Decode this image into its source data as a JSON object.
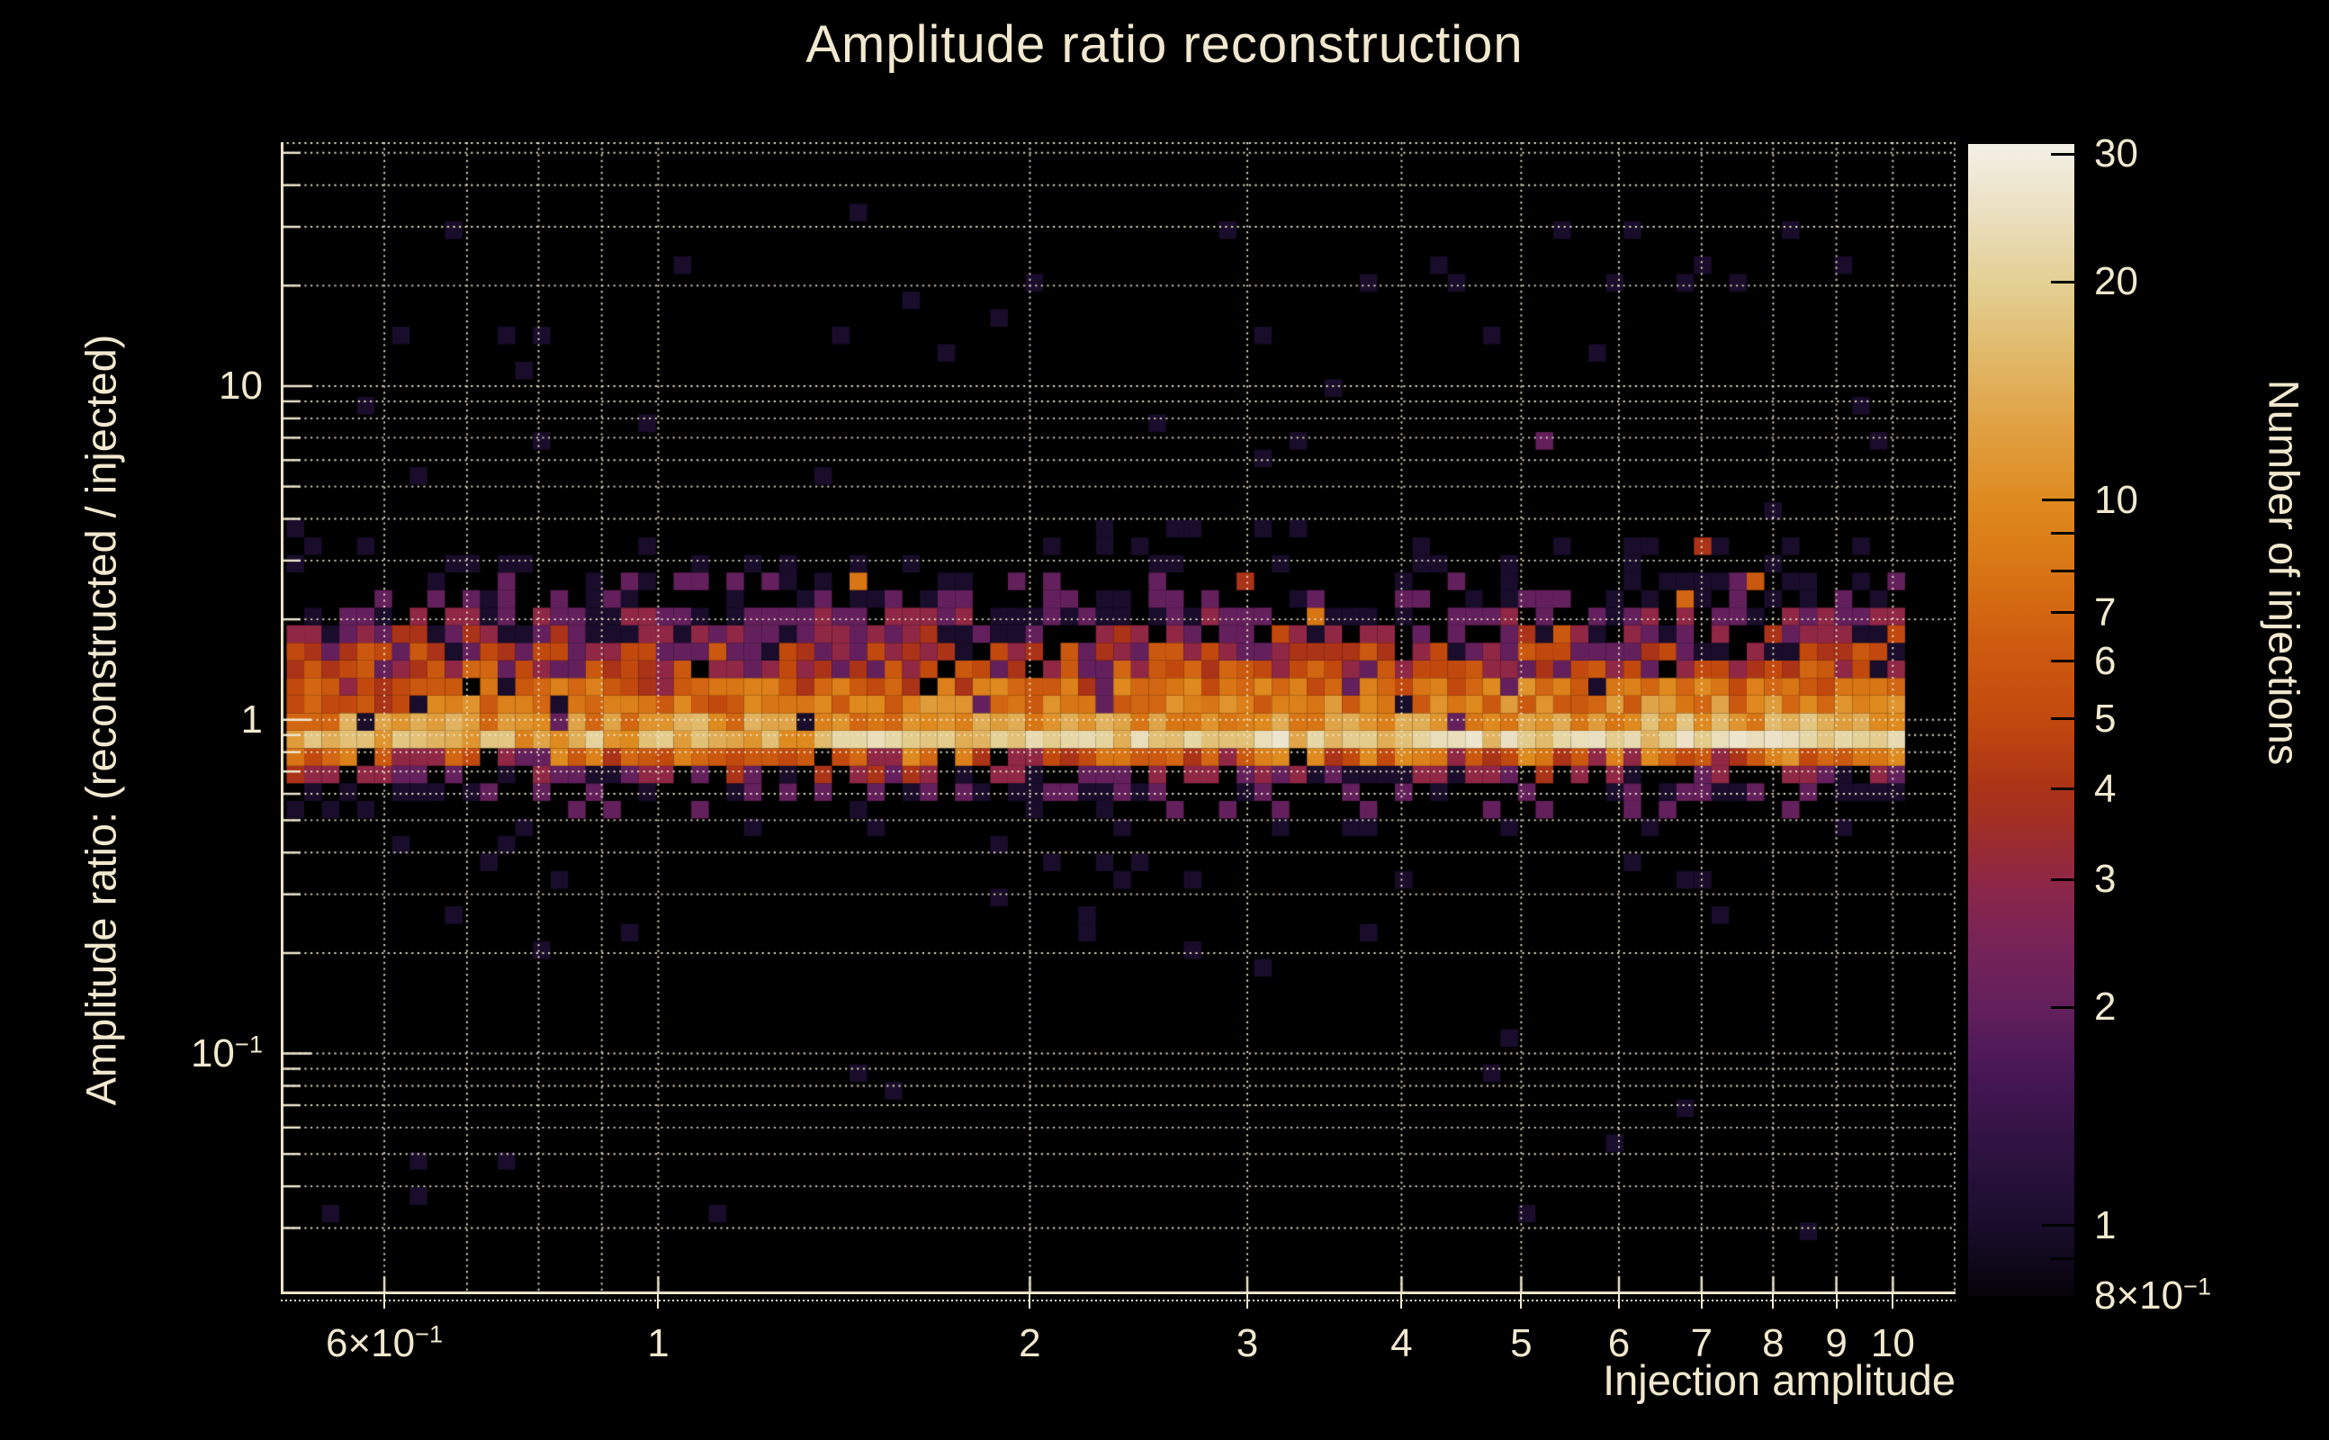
{
  "chart_data": {
    "type": "heatmap",
    "title": "Amplitude ratio reconstruction",
    "xlabel": "Injection amplitude",
    "ylabel": "Amplitude ratio: (reconstructed / injected)",
    "colorbar_label": "Number of injections",
    "x_scale": "log",
    "y_scale": "log",
    "x_range": [
      0.4946,
      11.24
    ],
    "y_range": [
      0.019,
      53.8
    ],
    "grid": {
      "on": true,
      "style": "dotted",
      "color": "#ece3c8"
    },
    "background_color": "#000000",
    "text_color": "#f1e8cf",
    "x_ticks": [
      {
        "v": 0.6,
        "m": "6×10",
        "e": "−1"
      },
      {
        "v": 1,
        "m": "1"
      },
      {
        "v": 2,
        "m": "2"
      },
      {
        "v": 3,
        "m": "3"
      },
      {
        "v": 4,
        "m": "4"
      },
      {
        "v": 5,
        "m": "5"
      },
      {
        "v": 6,
        "m": "6"
      },
      {
        "v": 7,
        "m": "7"
      },
      {
        "v": 8,
        "m": "8"
      },
      {
        "v": 9,
        "m": "9"
      },
      {
        "v": 10,
        "m": "10"
      }
    ],
    "y_ticks": [
      {
        "v": 10,
        "m": "10"
      },
      {
        "v": 1,
        "m": "1"
      },
      {
        "v": 0.1,
        "m": "10",
        "e": "−1"
      }
    ],
    "x_gridlines": [
      0.6,
      0.7,
      0.8,
      0.9,
      1,
      2,
      3,
      4,
      5,
      6,
      7,
      8,
      9,
      10
    ],
    "y_gridlines": [
      50,
      40,
      30,
      20,
      10,
      9,
      8,
      7,
      6,
      5,
      4,
      3,
      2,
      1,
      0.9,
      0.8,
      0.7,
      0.6,
      0.5,
      0.4,
      0.3,
      0.2,
      0.1,
      0.09,
      0.08,
      0.07,
      0.06,
      0.05,
      0.04,
      0.03
    ],
    "y_major_ticks": [
      10,
      1,
      0.1
    ],
    "colorbar": {
      "vmin": 0.8,
      "vmax": 31,
      "scale": "log",
      "tick_labels": [
        {
          "v": 30,
          "m": "30"
        },
        {
          "v": 20,
          "m": "20"
        },
        {
          "v": 10,
          "m": "10"
        },
        {
          "v": 7,
          "m": "7"
        },
        {
          "v": 6,
          "m": "6"
        },
        {
          "v": 5,
          "m": "5"
        },
        {
          "v": 4,
          "m": "4"
        },
        {
          "v": 3,
          "m": "3"
        },
        {
          "v": 2,
          "m": "2"
        },
        {
          "v": 1,
          "m": "1"
        },
        {
          "v": 0.8,
          "m": "8×10",
          "e": "−1"
        }
      ],
      "tick_marks": [
        30,
        20,
        10,
        9,
        8,
        7,
        6,
        5,
        4,
        3,
        2,
        1,
        0.9
      ],
      "major_tick_marks": [
        10,
        1
      ],
      "colormap_stops": [
        [
          0.0,
          "#060309"
        ],
        [
          0.06,
          "#190d2b"
        ],
        [
          0.13,
          "#2f1342"
        ],
        [
          0.2,
          "#4a1757"
        ],
        [
          0.25,
          "#63205c"
        ],
        [
          0.31,
          "#782457"
        ],
        [
          0.36,
          "#8e2746"
        ],
        [
          0.41,
          "#a02f24"
        ],
        [
          0.44,
          "#ab3317"
        ],
        [
          0.5,
          "#c2490e"
        ],
        [
          0.57,
          "#cf5d10"
        ],
        [
          0.63,
          "#d87514"
        ],
        [
          0.69,
          "#de8a1f"
        ],
        [
          0.76,
          "#e0a346"
        ],
        [
          0.82,
          "#e1ba6c"
        ],
        [
          0.88,
          "#e3d094"
        ],
        [
          0.94,
          "#ebdfc0"
        ],
        [
          1.0,
          "#f3f0e7"
        ]
      ]
    },
    "histogram": {
      "description": "2D histogram of reconstructed/injected amplitude ratio vs injection amplitude; dense band near ratio 1 (brightest row spans ratio 0.82-0.93, counts up to ~31 increasing toward high amplitude), sparse low-count scatter above up to ratio ~40 and below down to ~0.03",
      "seed": 20240915,
      "x_bins": {
        "min": 0.5,
        "max": 10.23,
        "n": 92
      },
      "row_grid": {
        "rows_per_decade": 19,
        "anchor_log": -0.0325,
        "k_min": -29,
        "k_max": 31
      },
      "bright_row_ratio_range": [
        0.822,
        0.928
      ],
      "white_chance": 0.07,
      "row_bands": [
        {
          "rel_from": 0,
          "rel_to": 0,
          "fill": 1.0,
          "cmin": 8,
          "cmax": 20,
          "right_boost": 9
        },
        {
          "rel_from": 1,
          "rel_to": 1,
          "fill": 1.0,
          "cmin": 6,
          "cmax": 15,
          "right_boost": 3
        },
        {
          "rel_from": 2,
          "rel_to": 2,
          "fill": 1.0,
          "cmin": 4,
          "cmax": 11,
          "right_boost": 2
        },
        {
          "rel_from": 3,
          "rel_to": 3,
          "fill": 0.97,
          "cmin": 3,
          "cmax": 9,
          "right_boost": 2
        },
        {
          "rel_from": 4,
          "rel_to": 4,
          "fill": 0.95,
          "cmin": 2,
          "cmax": 7,
          "right_boost": 0
        },
        {
          "rel_from": 5,
          "rel_to": 5,
          "fill": 0.9,
          "cmin": 1,
          "cmax": 6,
          "right_boost": 0
        },
        {
          "rel_from": 6,
          "rel_to": 6,
          "fill": 0.78,
          "cmin": 1,
          "cmax": 4,
          "right_boost": 0
        },
        {
          "rel_from": 7,
          "rel_to": 7,
          "fill": 0.6,
          "cmin": 1,
          "cmax": 3,
          "right_boost": 0
        },
        {
          "rel_from": 8,
          "rel_to": 8,
          "fill": 0.42,
          "cmin": 1,
          "cmax": 2,
          "right_boost": 0
        },
        {
          "rel_from": 9,
          "rel_to": 9,
          "fill": 0.3,
          "cmin": 1,
          "cmax": 2,
          "right_boost": 0
        },
        {
          "rel_from": 10,
          "rel_to": 10,
          "fill": 0.2,
          "cmin": 1,
          "cmax": 1,
          "right_boost": 0
        },
        {
          "rel_from": 11,
          "rel_to": 11,
          "fill": 0.11,
          "cmin": 1,
          "cmax": 1,
          "right_boost": 0
        },
        {
          "rel_from": 12,
          "rel_to": 13,
          "fill": 0.05,
          "cmin": 1,
          "cmax": 1,
          "right_boost": 0
        },
        {
          "rel_from": 14,
          "rel_to": 31,
          "fill": 0.012,
          "cmin": 1,
          "cmax": 1,
          "right_boost": 0
        },
        {
          "rel_from": -1,
          "rel_to": -1,
          "fill": 0.96,
          "cmin": 2,
          "cmax": 10,
          "right_boost": 1
        },
        {
          "rel_from": -2,
          "rel_to": -2,
          "fill": 0.7,
          "cmin": 1,
          "cmax": 4,
          "right_boost": 0
        },
        {
          "rel_from": -3,
          "rel_to": -3,
          "fill": 0.45,
          "cmin": 1,
          "cmax": 2,
          "right_boost": 0
        },
        {
          "rel_from": -4,
          "rel_to": -4,
          "fill": 0.2,
          "cmin": 1,
          "cmax": 2,
          "right_boost": 0
        },
        {
          "rel_from": -5,
          "rel_to": -5,
          "fill": 0.09,
          "cmin": 1,
          "cmax": 1,
          "right_boost": 0
        },
        {
          "rel_from": -8,
          "rel_to": -6,
          "fill": 0.04,
          "cmin": 1,
          "cmax": 1,
          "right_boost": 0
        },
        {
          "rel_from": -29,
          "rel_to": -9,
          "fill": 0.01,
          "cmin": 1,
          "cmax": 1,
          "right_boost": 0
        }
      ],
      "modifiers": {
        "left_scatter": {
          "rel_from": 5,
          "rel_to": 10,
          "x_below": 1.8,
          "fill_mult": 1.3
        },
        "right_cluster": {
          "rel_from": 4,
          "rel_to": 9,
          "x_above": 8.8,
          "fill_mult": 1.45
        },
        "dark_speckle_chance": 0.05,
        "anomaly_chance": 0.022
      },
      "outliers": [
        [
          1.45,
          33,
          1
        ],
        [
          1.7,
          12.6,
          1
        ],
        [
          0.61,
          14.8,
          1
        ],
        [
          0.675,
          27.8,
          1
        ],
        [
          0.77,
          11.4,
          1
        ],
        [
          5.28,
          7.2,
          2
        ],
        [
          8.99,
          23.3,
          1
        ],
        [
          1.57,
          0.082,
          1
        ],
        [
          0.795,
          0.2,
          1
        ],
        [
          2.7,
          0.21,
          1
        ],
        [
          0.63,
          0.037,
          1
        ],
        [
          3.14,
          0.46,
          1
        ],
        [
          1.19,
          0.5,
          1
        ],
        [
          2.32,
          3.9,
          1
        ]
      ]
    }
  }
}
